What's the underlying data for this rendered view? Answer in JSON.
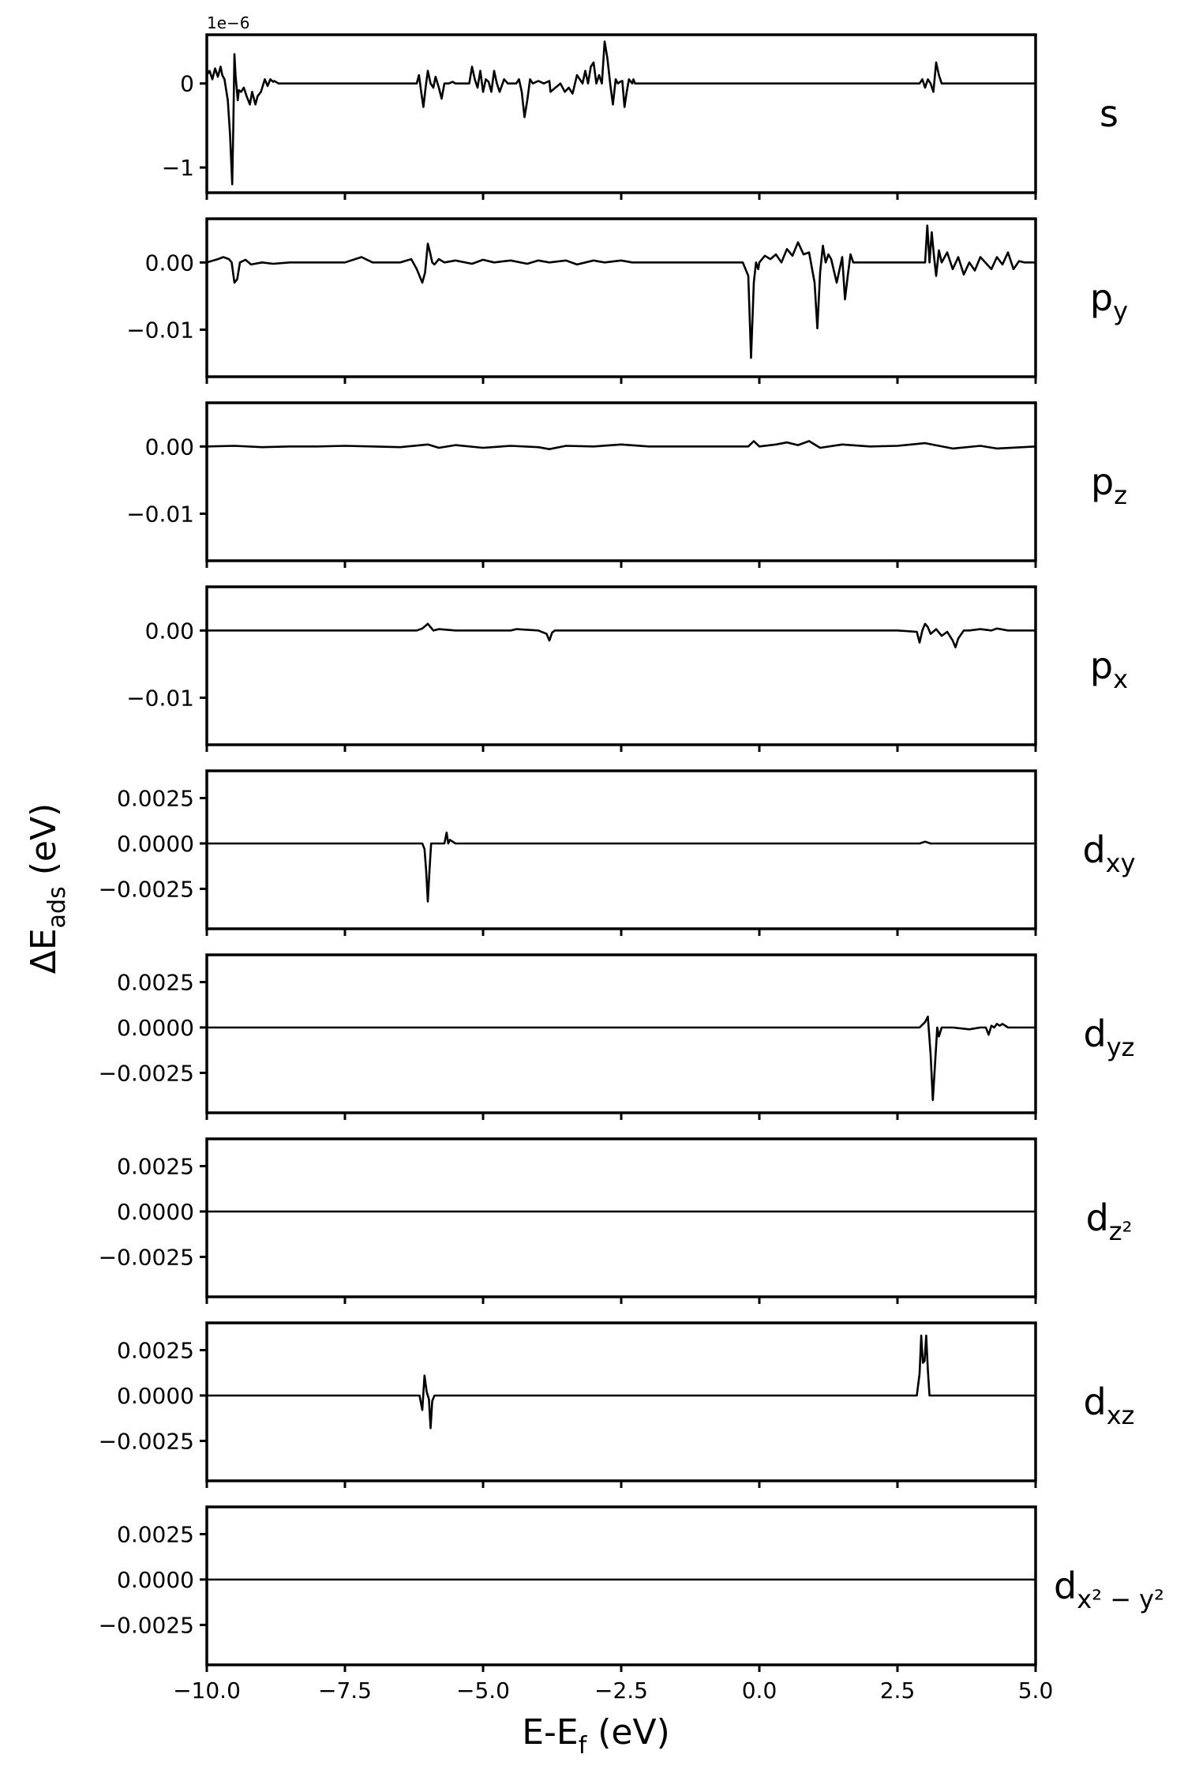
{
  "chart_data": {
    "type": "line",
    "layout": "vertically stacked subplots sharing the x axis",
    "xlabel_parts": [
      "E-E",
      "f",
      " (eV)"
    ],
    "ylabel_parts": [
      "ΔE",
      "ads",
      " (eV)"
    ],
    "xlim": [
      -10.0,
      5.0
    ],
    "xticks": [
      -10.0,
      -7.5,
      -5.0,
      -2.5,
      0.0,
      2.5,
      5.0
    ],
    "xtick_labels": [
      "−10.0",
      "−7.5",
      "−5.0",
      "−2.5",
      "0.0",
      "2.5",
      "5.0"
    ],
    "grid": false,
    "legend": "none",
    "line_color": "#000000",
    "panels": [
      {
        "name": "s",
        "label_parts": [
          "s"
        ],
        "offset_label": "1e−6",
        "ylim": [
          -1.3,
          0.58
        ],
        "yticks": [
          0,
          -1
        ],
        "ytick_labels": [
          "0",
          "−1"
        ],
        "series": {
          "x": [
            -10.0,
            -9.95,
            -9.9,
            -9.85,
            -9.8,
            -9.75,
            -9.72,
            -9.68,
            -9.62,
            -9.58,
            -9.54,
            -9.52,
            -9.5,
            -9.48,
            -9.46,
            -9.44,
            -9.42,
            -9.38,
            -9.33,
            -9.28,
            -9.22,
            -9.18,
            -9.12,
            -9.08,
            -9.02,
            -8.95,
            -8.9,
            -8.85,
            -8.8,
            -8.78,
            -8.7,
            -6.2,
            -6.16,
            -6.12,
            -6.08,
            -6.04,
            -6.0,
            -5.95,
            -5.9,
            -5.86,
            -5.8,
            -5.75,
            -5.7,
            -5.62,
            -5.55,
            -5.5,
            -5.45,
            -5.35,
            -5.25,
            -5.2,
            -5.15,
            -5.1,
            -5.05,
            -5.0,
            -4.95,
            -4.9,
            -4.85,
            -4.8,
            -4.75,
            -4.7,
            -4.62,
            -4.55,
            -4.48,
            -4.4,
            -4.35,
            -4.3,
            -4.25,
            -4.2,
            -4.15,
            -4.1,
            -4.0,
            -3.9,
            -3.8,
            -3.78,
            -3.6,
            -3.52,
            -3.45,
            -3.38,
            -3.3,
            -3.2,
            -3.15,
            -3.1,
            -3.05,
            -3.0,
            -2.95,
            -2.9,
            -2.85,
            -2.8,
            -2.75,
            -2.7,
            -2.65,
            -2.6,
            -2.56,
            -2.52,
            -2.48,
            -2.44,
            -2.4,
            -2.36,
            -2.3,
            -2.28,
            -2.25,
            -2.2,
            -2.15,
            -2.1,
            -2.05,
            -2.0,
            2.9,
            2.95,
            3.0,
            3.05,
            3.1,
            3.15,
            3.2,
            3.25,
            3.3,
            5.0
          ],
          "y": [
            0.1,
            0.15,
            0.05,
            0.18,
            0.08,
            0.2,
            0.1,
            0.05,
            -0.2,
            -0.6,
            -1.2,
            -0.5,
            0.35,
            0.1,
            -0.05,
            -0.2,
            -0.08,
            -0.1,
            -0.05,
            -0.15,
            -0.25,
            -0.1,
            -0.25,
            -0.15,
            -0.1,
            0.05,
            -0.03,
            0.05,
            0.02,
            0.03,
            0.0,
            0.0,
            0.1,
            -0.1,
            -0.28,
            -0.05,
            0.15,
            0.0,
            -0.05,
            0.08,
            -0.05,
            -0.18,
            0.0,
            0.0,
            0.02,
            0.0,
            0.0,
            0.0,
            0.0,
            0.2,
            0.05,
            -0.05,
            0.15,
            -0.1,
            0.05,
            0.02,
            -0.1,
            0.15,
            0.0,
            -0.1,
            0.05,
            0.0,
            0.0,
            0.0,
            0.05,
            -0.1,
            -0.4,
            -0.2,
            0.05,
            0.0,
            0.03,
            0.0,
            0.03,
            -0.1,
            0.0,
            -0.1,
            -0.05,
            -0.12,
            0.1,
            0.0,
            0.15,
            0.0,
            0.2,
            0.25,
            0.0,
            0.1,
            0.0,
            0.5,
            0.3,
            0.0,
            -0.25,
            0.05,
            0.0,
            0.02,
            0.03,
            -0.28,
            -0.1,
            0.05,
            0.0,
            0.05,
            0.0,
            0.0,
            0.0,
            0.0,
            0.0,
            0.0,
            0.0,
            0.05,
            -0.05,
            0.05,
            0.0,
            -0.1,
            0.25,
            0.1,
            0.0,
            0.0
          ]
        }
      },
      {
        "name": "py",
        "label_parts": [
          "p",
          "y"
        ],
        "ylim": [
          -0.017,
          0.0065
        ],
        "yticks": [
          0.0,
          -0.01
        ],
        "ytick_labels": [
          "0.00",
          "−0.01"
        ],
        "series": {
          "x": [
            -10.0,
            -9.8,
            -9.7,
            -9.6,
            -9.55,
            -9.5,
            -9.45,
            -9.4,
            -9.3,
            -9.2,
            -9.0,
            -8.8,
            -8.5,
            -8.0,
            -7.5,
            -7.2,
            -7.0,
            -6.8,
            -6.5,
            -6.3,
            -6.2,
            -6.1,
            -6.05,
            -6.0,
            -5.96,
            -5.92,
            -5.88,
            -5.8,
            -5.7,
            -5.5,
            -5.2,
            -5.0,
            -4.8,
            -4.5,
            -4.2,
            -4.0,
            -3.8,
            -3.5,
            -3.3,
            -3.0,
            -2.8,
            -2.5,
            -2.3,
            -2.0,
            -1.5,
            -1.0,
            -0.5,
            -0.3,
            -0.2,
            -0.15,
            -0.1,
            -0.06,
            -0.02,
            0.0,
            0.1,
            0.2,
            0.3,
            0.4,
            0.5,
            0.6,
            0.7,
            0.8,
            0.9,
            1.0,
            1.05,
            1.1,
            1.15,
            1.2,
            1.25,
            1.3,
            1.4,
            1.5,
            1.55,
            1.6,
            1.65,
            1.7,
            1.8,
            2.0,
            2.5,
            2.9,
            3.0,
            3.04,
            3.08,
            3.12,
            3.16,
            3.2,
            3.25,
            3.3,
            3.4,
            3.5,
            3.6,
            3.7,
            3.8,
            3.9,
            4.0,
            4.2,
            4.3,
            4.4,
            4.5,
            4.6,
            4.7,
            4.8,
            5.0
          ],
          "y": [
            0.0,
            0.0005,
            0.0008,
            0.0005,
            0.0,
            -0.003,
            -0.0025,
            0.0,
            0.0004,
            -0.0003,
            0.0,
            -0.0002,
            0.0,
            0.0,
            0.0,
            0.0008,
            0.0,
            0.0,
            0.0,
            0.0005,
            -0.001,
            -0.003,
            -0.0015,
            0.0028,
            0.0015,
            0.0,
            -0.0003,
            0.0005,
            0.0,
            0.0003,
            -0.0002,
            0.0004,
            0.0,
            0.0003,
            -0.0002,
            0.0003,
            0.0,
            0.0003,
            -0.0003,
            0.0003,
            0.0,
            0.0003,
            0.0,
            0.0,
            0.0,
            0.0,
            0.0,
            0.0,
            -0.002,
            -0.0142,
            -0.003,
            0.0,
            -0.001,
            0.0,
            0.001,
            0.0005,
            0.0012,
            0.0,
            0.002,
            0.001,
            0.003,
            0.0012,
            0.0015,
            -0.003,
            -0.0098,
            -0.0015,
            0.0025,
            0.0,
            0.0012,
            0.0005,
            -0.003,
            0.0008,
            -0.0055,
            -0.002,
            0.0012,
            0.0,
            0.0,
            0.0,
            0.0,
            0.0,
            0.0,
            0.0055,
            0.0,
            0.0045,
            0.001,
            -0.002,
            0.0018,
            0.0,
            0.0015,
            -0.001,
            0.0008,
            -0.0018,
            0.0,
            -0.0012,
            0.0008,
            -0.001,
            0.0008,
            -0.0003,
            0.0015,
            -0.001,
            0.0002,
            0.0,
            0.0
          ]
        }
      },
      {
        "name": "pz",
        "label_parts": [
          "p",
          "z"
        ],
        "ylim": [
          -0.017,
          0.0065
        ],
        "yticks": [
          0.0,
          -0.01
        ],
        "ytick_labels": [
          "0.00",
          "−0.01"
        ],
        "series": {
          "x": [
            -10.0,
            -9.5,
            -9.0,
            -8.5,
            -8.0,
            -7.5,
            -7.0,
            -6.5,
            -6.0,
            -5.8,
            -5.5,
            -5.0,
            -4.5,
            -4.0,
            -3.8,
            -3.5,
            -3.0,
            -2.5,
            -2.0,
            -1.5,
            -1.0,
            -0.5,
            -0.2,
            -0.1,
            0.0,
            0.3,
            0.5,
            0.7,
            0.9,
            1.1,
            1.5,
            2.0,
            2.5,
            3.0,
            3.5,
            4.0,
            4.3,
            5.0
          ],
          "y": [
            0.0,
            0.0001,
            -0.0001,
            0.0,
            0.0,
            0.0001,
            0.0,
            -0.0001,
            0.0003,
            -0.0002,
            0.0002,
            -0.0002,
            0.0001,
            -0.0001,
            -0.0004,
            0.0001,
            0.0,
            0.0003,
            0.0,
            0.0,
            0.0,
            0.0,
            0.0,
            0.0008,
            0.0,
            0.0003,
            0.0006,
            0.0002,
            0.0008,
            -0.0002,
            0.0003,
            0.0,
            0.0001,
            0.0005,
            -0.0003,
            0.0001,
            -0.0003,
            0.0
          ]
        }
      },
      {
        "name": "px",
        "label_parts": [
          "p",
          "x"
        ],
        "ylim": [
          -0.017,
          0.0065
        ],
        "yticks": [
          0.0,
          -0.01
        ],
        "ytick_labels": [
          "0.00",
          "−0.01"
        ],
        "series": {
          "x": [
            -10.0,
            -6.2,
            -6.1,
            -6.0,
            -5.95,
            -5.9,
            -5.8,
            -5.5,
            -4.5,
            -4.4,
            -4.0,
            -3.85,
            -3.8,
            -3.75,
            -3.7,
            -3.5,
            -2.0,
            0.0,
            2.5,
            2.85,
            2.9,
            2.95,
            3.0,
            3.05,
            3.1,
            3.2,
            3.3,
            3.4,
            3.5,
            3.55,
            3.6,
            3.7,
            3.8,
            4.0,
            4.2,
            4.3,
            4.5,
            5.0
          ],
          "y": [
            0.0,
            0.0,
            0.0003,
            0.001,
            0.0005,
            0.0,
            0.0002,
            0.0,
            0.0,
            0.0002,
            0.0,
            -0.0005,
            -0.0015,
            -0.0003,
            0.0,
            0.0,
            0.0,
            0.0,
            0.0,
            -0.0002,
            -0.0018,
            0.0,
            0.001,
            0.0005,
            -0.0005,
            0.0002,
            -0.0008,
            -0.0002,
            -0.0015,
            -0.0025,
            -0.0012,
            0.0,
            0.0,
            0.0002,
            0.0,
            0.0003,
            0.0,
            0.0
          ]
        }
      },
      {
        "name": "dxy",
        "label_parts": [
          "d",
          "xy"
        ],
        "ylim": [
          -0.0047,
          0.004
        ],
        "yticks": [
          0.0025,
          0.0,
          -0.0025
        ],
        "ytick_labels": [
          "0.0025",
          "0.0000",
          "−0.0025"
        ],
        "series": {
          "x": [
            -10.0,
            -6.1,
            -6.06,
            -6.03,
            -6.0,
            -5.97,
            -5.94,
            -5.9,
            -5.7,
            -5.66,
            -5.63,
            -5.6,
            -5.5,
            2.9,
            3.0,
            3.1,
            5.0
          ],
          "y": [
            0.0,
            0.0,
            -0.0003,
            -0.0015,
            -0.0032,
            -0.0015,
            0.0,
            0.0,
            0.0,
            0.0006,
            0.0,
            0.0002,
            0.0,
            0.0,
            0.0001,
            0.0,
            0.0
          ]
        }
      },
      {
        "name": "dyz",
        "label_parts": [
          "d",
          "yz"
        ],
        "ylim": [
          -0.0047,
          0.004
        ],
        "yticks": [
          0.0025,
          0.0,
          -0.0025
        ],
        "ytick_labels": [
          "0.0025",
          "0.0000",
          "−0.0025"
        ],
        "series": {
          "x": [
            -10.0,
            2.9,
            3.0,
            3.05,
            3.1,
            3.14,
            3.18,
            3.22,
            3.25,
            3.3,
            3.5,
            3.8,
            4.0,
            4.1,
            4.15,
            4.2,
            4.25,
            4.3,
            4.35,
            4.4,
            4.5,
            5.0
          ],
          "y": [
            0.0,
            0.0,
            0.0003,
            0.0006,
            -0.0015,
            -0.004,
            -0.002,
            0.0,
            -0.0005,
            0.0,
            0.0,
            -0.0001,
            0.0,
            0.0,
            -0.0004,
            0.0001,
            0.0,
            0.0002,
            0.0001,
            0.0002,
            0.0,
            0.0
          ]
        }
      },
      {
        "name": "dz2",
        "label_parts": [
          "d",
          "z²"
        ],
        "ylim": [
          -0.0047,
          0.004
        ],
        "yticks": [
          0.0025,
          0.0,
          -0.0025
        ],
        "ytick_labels": [
          "0.0025",
          "0.0000",
          "−0.0025"
        ],
        "series": {
          "x": [
            -10.0,
            5.0
          ],
          "y": [
            0.0,
            0.0
          ]
        }
      },
      {
        "name": "dxz",
        "label_parts": [
          "d",
          "xz"
        ],
        "ylim": [
          -0.0047,
          0.004
        ],
        "yticks": [
          0.0025,
          0.0,
          -0.0025
        ],
        "ytick_labels": [
          "0.0025",
          "0.0000",
          "−0.0025"
        ],
        "series": {
          "x": [
            -10.0,
            -6.15,
            -6.1,
            -6.06,
            -6.02,
            -5.98,
            -5.95,
            -5.92,
            -5.88,
            -5.8,
            2.85,
            2.9,
            2.93,
            2.96,
            2.99,
            3.02,
            3.05,
            3.08,
            3.1,
            3.15,
            5.0
          ],
          "y": [
            0.0,
            0.0,
            -0.0008,
            0.0011,
            0.0002,
            -0.0002,
            -0.0018,
            -0.0003,
            0.0,
            0.0,
            0.0,
            0.0012,
            0.0033,
            0.0018,
            0.0019,
            0.0033,
            0.0014,
            0.0,
            0.0,
            0.0,
            0.0
          ]
        }
      },
      {
        "name": "dx2-y2",
        "label_parts": [
          "d",
          "x² − y²"
        ],
        "ylim": [
          -0.0047,
          0.004
        ],
        "yticks": [
          0.0025,
          0.0,
          -0.0025
        ],
        "ytick_labels": [
          "0.0025",
          "0.0000",
          "−0.0025"
        ],
        "series": {
          "x": [
            -10.0,
            5.0
          ],
          "y": [
            0.0,
            0.0
          ]
        }
      }
    ]
  }
}
